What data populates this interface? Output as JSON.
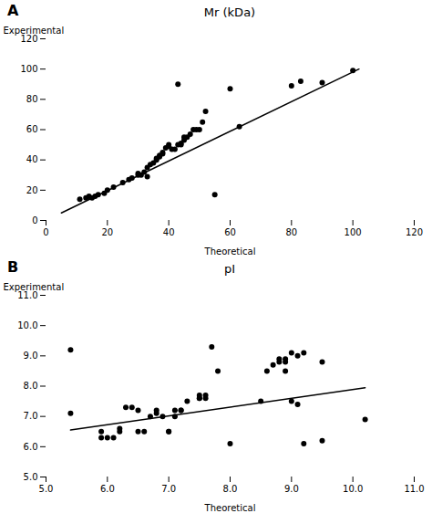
{
  "chart_data": [
    {
      "type": "scatter",
      "title": "Mr (kDa)",
      "xlabel": "Theoretical",
      "ylabel": "Experimental",
      "annotations": [
        "A"
      ],
      "xlim": [
        0,
        120
      ],
      "ylim": [
        0,
        120
      ],
      "xticks": [
        0,
        20,
        40,
        60,
        80,
        100,
        120
      ],
      "yticks": [
        0,
        20,
        40,
        60,
        80,
        100,
        120
      ],
      "grid": false,
      "series": [
        {
          "type": "scatter",
          "color": "#000000",
          "x": [
            11,
            13,
            14,
            15,
            16,
            17,
            19,
            20,
            22,
            25,
            27,
            28,
            30,
            30,
            31,
            32,
            33,
            33,
            34,
            35,
            36,
            36,
            37,
            37,
            38,
            38,
            39,
            40,
            40,
            41,
            42,
            43,
            44,
            44,
            45,
            45,
            46,
            47,
            48,
            49,
            50,
            51,
            52,
            43,
            55,
            60,
            63,
            80,
            83,
            90,
            100
          ],
          "values": [
            14,
            15,
            16,
            15,
            16,
            17,
            18,
            20,
            22,
            25,
            27,
            28,
            30,
            31,
            30,
            32,
            35,
            29,
            37,
            38,
            40,
            41,
            42,
            43,
            45,
            44,
            48,
            50,
            49,
            47,
            47,
            50,
            51,
            50,
            53,
            55,
            55,
            57,
            60,
            60,
            60,
            65,
            72,
            90,
            17,
            87,
            62,
            89,
            92,
            91,
            99
          ]
        },
        {
          "type": "line",
          "color": "#000000",
          "x": [
            5,
            102
          ],
          "values": [
            5,
            100
          ]
        }
      ]
    },
    {
      "type": "scatter",
      "title": "pI",
      "xlabel": "Theoretical",
      "ylabel": "Experimental",
      "annotations": [
        "B"
      ],
      "xlim": [
        5,
        11
      ],
      "ylim": [
        5,
        11
      ],
      "xticks": [
        5,
        6,
        7,
        8,
        9,
        10,
        11
      ],
      "yticks": [
        5,
        6,
        7,
        8,
        9,
        10,
        11
      ],
      "grid": false,
      "series": [
        {
          "type": "scatter",
          "color": "#000000",
          "x": [
            5.4,
            5.4,
            5.9,
            5.9,
            6.0,
            6.1,
            6.2,
            6.2,
            6.3,
            6.4,
            6.5,
            6.5,
            6.6,
            6.7,
            6.8,
            6.8,
            6.9,
            7.0,
            7.0,
            7.1,
            7.1,
            7.2,
            7.2,
            7.3,
            7.5,
            7.5,
            7.5,
            7.6,
            7.6,
            7.7,
            7.8,
            8.0,
            8.5,
            8.6,
            8.7,
            8.8,
            8.8,
            8.9,
            8.9,
            8.9,
            9.0,
            9.0,
            9.1,
            9.1,
            9.2,
            9.2,
            9.5,
            9.5,
            10.2
          ],
          "values": [
            9.2,
            7.1,
            6.5,
            6.3,
            6.3,
            6.3,
            6.5,
            6.6,
            7.3,
            7.3,
            6.5,
            7.2,
            6.5,
            7.0,
            7.1,
            7.2,
            7.0,
            6.5,
            6.5,
            7.0,
            7.2,
            7.2,
            7.2,
            7.5,
            7.7,
            7.6,
            7.6,
            7.6,
            7.7,
            9.3,
            8.5,
            6.1,
            7.5,
            8.5,
            8.7,
            8.8,
            8.9,
            8.8,
            8.9,
            8.5,
            9.1,
            7.5,
            9.0,
            7.4,
            9.1,
            6.1,
            8.8,
            6.2,
            6.9
          ]
        },
        {
          "type": "line",
          "color": "#000000",
          "x": [
            5.4,
            10.2
          ],
          "values": [
            6.55,
            7.95
          ]
        }
      ]
    }
  ]
}
